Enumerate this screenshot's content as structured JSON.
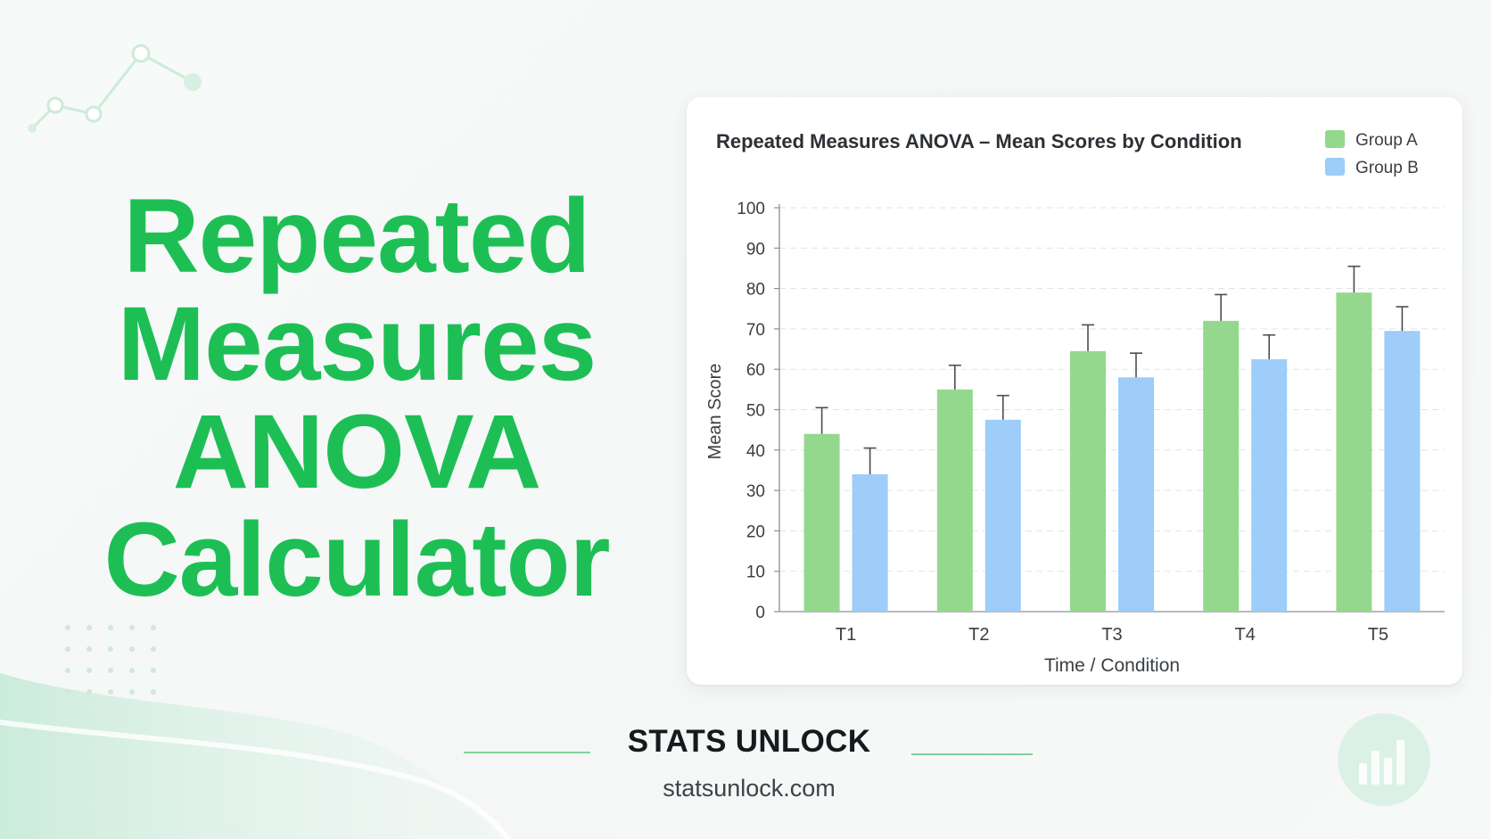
{
  "hero": {
    "lines": [
      "Repeated",
      "Measures",
      "ANOVA",
      "Calculator"
    ]
  },
  "brand": {
    "name": "STATS UNLOCK",
    "url": "statsunlock.com"
  },
  "colors": {
    "accent": "#1dbf55",
    "group_a": "#94d88d",
    "group_b": "#9dcdf8",
    "error_bar": "#4a4f54",
    "axis_text": "#3a3f44"
  },
  "icons": [
    "line-graph-decoration-icon",
    "dot-grid-decoration-icon",
    "bar-chart-logo-icon"
  ],
  "chart_data": {
    "type": "bar",
    "title": "Repeated Measures ANOVA – Mean Scores by Condition",
    "xlabel": "Time / Condition",
    "ylabel": "Mean Score",
    "categories": [
      "T1",
      "T2",
      "T3",
      "T4",
      "T5"
    ],
    "ylim": [
      0,
      100
    ],
    "yticks": [
      0,
      10,
      20,
      30,
      40,
      50,
      60,
      70,
      80,
      90,
      100
    ],
    "grid": true,
    "legend_position": "top-right",
    "series": [
      {
        "name": "Group A",
        "values": [
          44,
          55,
          64.5,
          72,
          79
        ],
        "error": [
          6.5,
          6,
          6.5,
          6.5,
          6.5
        ]
      },
      {
        "name": "Group B",
        "values": [
          34,
          47.5,
          58,
          62.5,
          69.5
        ],
        "error": [
          6.5,
          6,
          6,
          6,
          6
        ]
      }
    ]
  }
}
